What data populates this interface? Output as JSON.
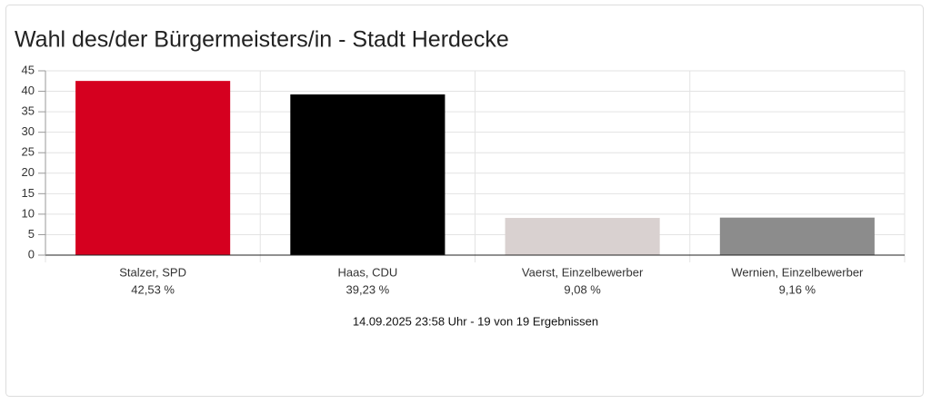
{
  "chart_data": {
    "type": "bar",
    "title": "Wahl des/der Bürgermeisters/in - Stadt Herdecke",
    "categories": [
      "Stalzer, SPD",
      "Haas, CDU",
      "Vaerst, Einzelbewerber",
      "Wernien, Einzelbewerber"
    ],
    "values": [
      42.53,
      39.23,
      9.08,
      9.16
    ],
    "value_labels": [
      "42,53 %",
      "39,23 %",
      "9,08 %",
      "9,16 %"
    ],
    "colors": [
      "#d5001f",
      "#000000",
      "#d9d1d0",
      "#8c8c8c"
    ],
    "ylim": [
      0,
      45
    ],
    "yticks": [
      0,
      5,
      10,
      15,
      20,
      25,
      30,
      35,
      40,
      45
    ],
    "grid": true,
    "footnote": "14.09.2025 23:58 Uhr - 19 von 19 Ergebnissen"
  }
}
